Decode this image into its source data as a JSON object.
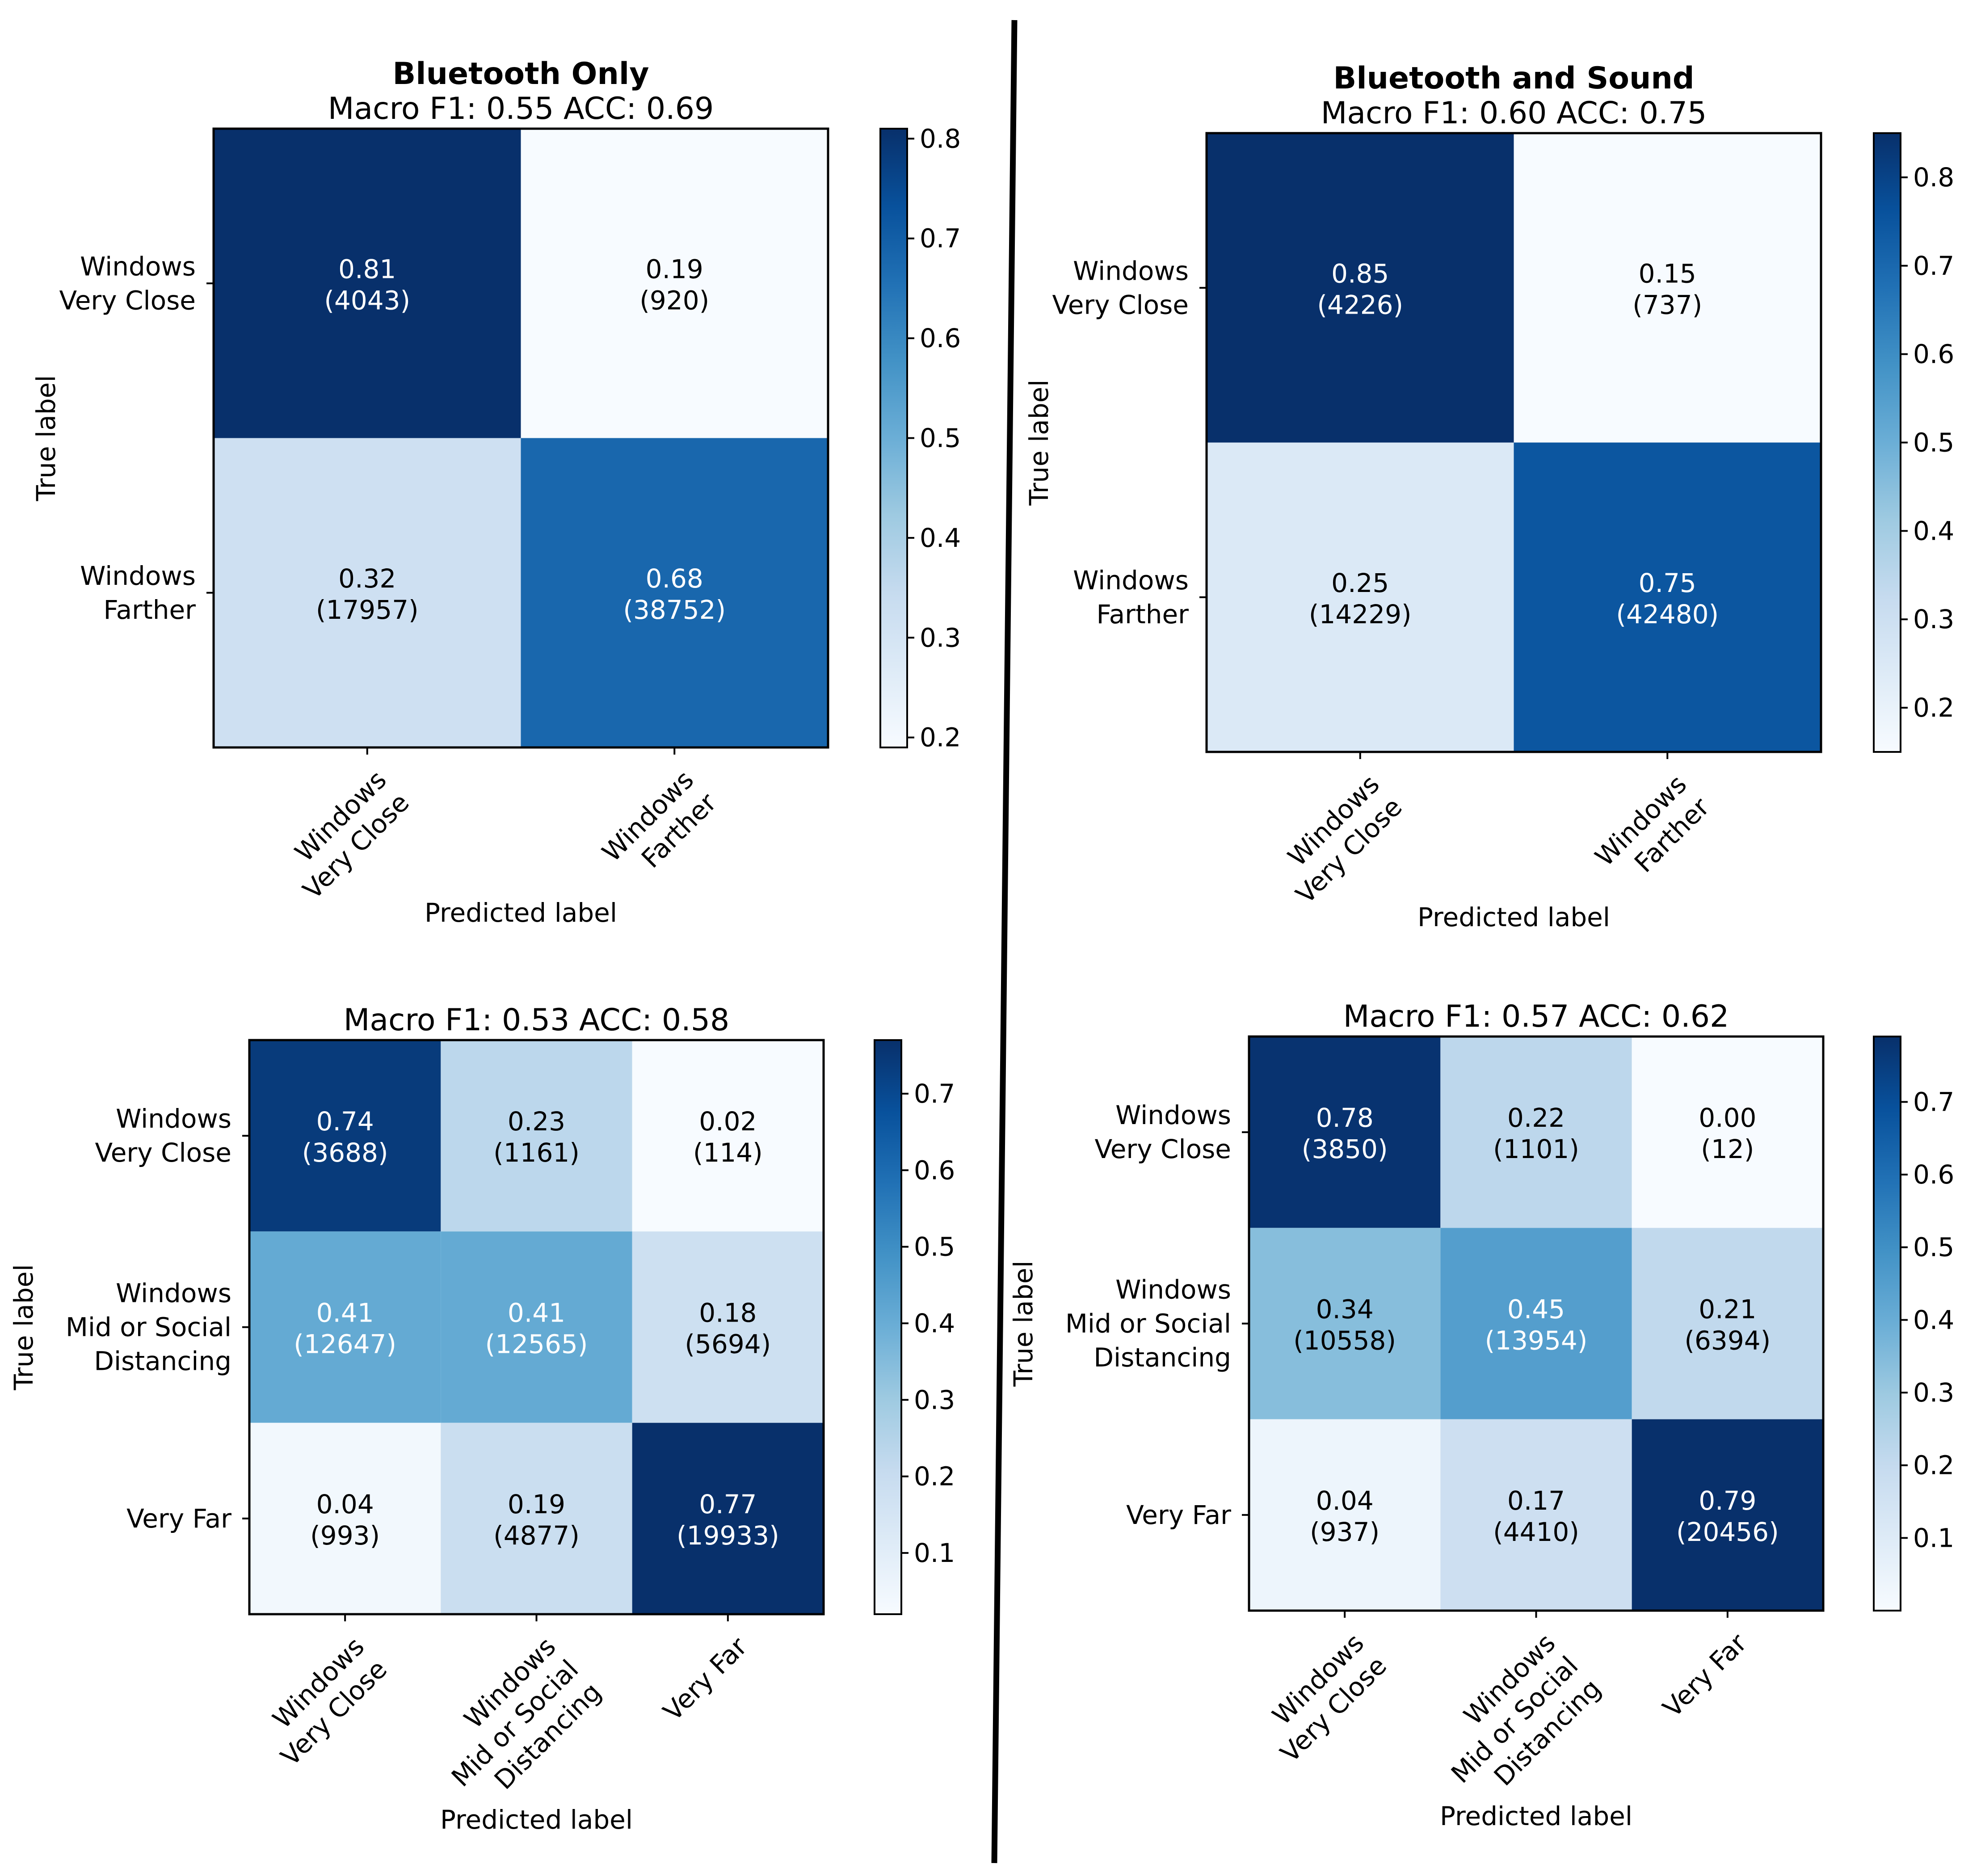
{
  "chart_data": [
    {
      "type": "heatmap",
      "title": "Bluetooth Only",
      "subtitle": "Macro F1: 0.55 ACC: 0.69",
      "xlabel": "Predicted label",
      "ylabel": "True label",
      "row_labels": [
        [
          "Windows",
          "Very Close"
        ],
        [
          "Windows",
          "Farther"
        ]
      ],
      "col_labels": [
        [
          "Windows",
          "Very Close"
        ],
        [
          "Windows",
          "Farther"
        ]
      ],
      "values": [
        [
          0.81,
          0.19
        ],
        [
          0.32,
          0.68
        ]
      ],
      "value_labels": [
        [
          "0.81",
          "0.19"
        ],
        [
          "0.32",
          "0.68"
        ]
      ],
      "counts": [
        [
          "(4043)",
          "(920)"
        ],
        [
          "(17957)",
          "(38752)"
        ]
      ],
      "colorbar": {
        "min": 0.19,
        "max": 0.81,
        "ticks": [
          "0.2",
          "0.3",
          "0.4",
          "0.5",
          "0.6",
          "0.7",
          "0.8"
        ]
      },
      "colormap": "Blues"
    },
    {
      "type": "heatmap",
      "title": "Bluetooth and Sound",
      "subtitle": "Macro F1: 0.60 ACC: 0.75",
      "xlabel": "Predicted label",
      "ylabel": "True label",
      "row_labels": [
        [
          "Windows",
          "Very Close"
        ],
        [
          "Windows",
          "Farther"
        ]
      ],
      "col_labels": [
        [
          "Windows",
          "Very Close"
        ],
        [
          "Windows",
          "Farther"
        ]
      ],
      "values": [
        [
          0.85,
          0.15
        ],
        [
          0.25,
          0.75
        ]
      ],
      "value_labels": [
        [
          "0.85",
          "0.15"
        ],
        [
          "0.25",
          "0.75"
        ]
      ],
      "counts": [
        [
          "(4226)",
          "(737)"
        ],
        [
          "(14229)",
          "(42480)"
        ]
      ],
      "colorbar": {
        "min": 0.15,
        "max": 0.85,
        "ticks": [
          "0.2",
          "0.3",
          "0.4",
          "0.5",
          "0.6",
          "0.7",
          "0.8"
        ]
      },
      "colormap": "Blues"
    },
    {
      "type": "heatmap",
      "title": "",
      "subtitle": "Macro F1: 0.53 ACC: 0.58",
      "xlabel": "Predicted label",
      "ylabel": "True label",
      "row_labels": [
        [
          "Windows",
          "Very Close"
        ],
        [
          "Windows",
          "Mid or Social",
          "Distancing"
        ],
        [
          "Very Far"
        ]
      ],
      "col_labels": [
        [
          "Windows",
          "Very Close"
        ],
        [
          "Windows",
          "Mid or Social",
          "Distancing"
        ],
        [
          "Very Far"
        ]
      ],
      "values": [
        [
          0.74,
          0.23,
          0.02
        ],
        [
          0.41,
          0.41,
          0.18
        ],
        [
          0.04,
          0.19,
          0.77
        ]
      ],
      "value_labels": [
        [
          "0.74",
          "0.23",
          "0.02"
        ],
        [
          "0.41",
          "0.41",
          "0.18"
        ],
        [
          "0.04",
          "0.19",
          "0.77"
        ]
      ],
      "counts": [
        [
          "(3688)",
          "(1161)",
          "(114)"
        ],
        [
          "(12647)",
          "(12565)",
          "(5694)"
        ],
        [
          "(993)",
          "(4877)",
          "(19933)"
        ]
      ],
      "colorbar": {
        "min": 0.02,
        "max": 0.77,
        "ticks": [
          "0.1",
          "0.2",
          "0.3",
          "0.4",
          "0.5",
          "0.6",
          "0.7"
        ]
      },
      "colormap": "Blues"
    },
    {
      "type": "heatmap",
      "title": "",
      "subtitle": "Macro F1: 0.57 ACC: 0.62",
      "xlabel": "Predicted label",
      "ylabel": "True label",
      "row_labels": [
        [
          "Windows",
          "Very Close"
        ],
        [
          "Windows",
          "Mid or Social",
          "Distancing"
        ],
        [
          "Very Far"
        ]
      ],
      "col_labels": [
        [
          "Windows",
          "Very Close"
        ],
        [
          "Windows",
          "Mid or Social",
          "Distancing"
        ],
        [
          "Very Far"
        ]
      ],
      "values": [
        [
          0.78,
          0.22,
          0.0
        ],
        [
          0.34,
          0.45,
          0.21
        ],
        [
          0.04,
          0.17,
          0.79
        ]
      ],
      "value_labels": [
        [
          "0.78",
          "0.22",
          "0.00"
        ],
        [
          "0.34",
          "0.45",
          "0.21"
        ],
        [
          "0.04",
          "0.17",
          "0.79"
        ]
      ],
      "counts": [
        [
          "(3850)",
          "(1101)",
          "(12)"
        ],
        [
          "(10558)",
          "(13954)",
          "(6394)"
        ],
        [
          "(937)",
          "(4410)",
          "(20456)"
        ]
      ],
      "colorbar": {
        "min": 0.0,
        "max": 0.79,
        "ticks": [
          "0.1",
          "0.2",
          "0.3",
          "0.4",
          "0.5",
          "0.6",
          "0.7"
        ]
      },
      "colormap": "Blues"
    }
  ]
}
